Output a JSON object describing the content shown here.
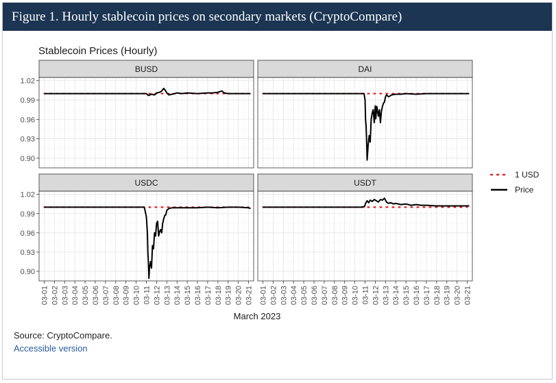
{
  "header": {
    "title": "Figure 1. Hourly stablecoin prices on secondary markets (CryptoCompare)"
  },
  "chart_data": {
    "type": "line",
    "title": "Stablecoin Prices (Hourly)",
    "xlabel": "March 2023",
    "ylabel": "",
    "ylim": [
      0.885,
      1.025
    ],
    "yticks": [
      0.9,
      0.93,
      0.96,
      0.99,
      1.02
    ],
    "ytick_labels": [
      "0.90",
      "0.93",
      "0.96",
      "0.99",
      "1.02"
    ],
    "xlim": [
      0.5,
      21.5
    ],
    "x_tick_labels": [
      "03-01",
      "03-02",
      "03-03",
      "03-04",
      "03-05",
      "03-06",
      "03-07",
      "03-08",
      "03-09",
      "03-10",
      "03-11",
      "03-12",
      "03-13",
      "03-14",
      "03-15",
      "03-16",
      "03-17",
      "03-18",
      "03-19",
      "03-20",
      "03-21"
    ],
    "legend": {
      "position": "right",
      "entries": [
        {
          "label": "1 USD",
          "style": "dotted",
          "color": "#e41a1c"
        },
        {
          "label": "Price",
          "style": "solid",
          "color": "#000000"
        }
      ]
    },
    "panels": [
      {
        "name": "BUSD",
        "reference": 1.0,
        "series": [
          {
            "name": "Price",
            "x": [
              1,
              10.5,
              11.0,
              11.2,
              11.5,
              11.8,
              12.0,
              12.3,
              12.5,
              12.7,
              12.9,
              13.0,
              13.2,
              13.5,
              13.8,
              14.0,
              14.5,
              15.0,
              16.0,
              17.0,
              17.5,
              18.0,
              18.2,
              18.4,
              18.6,
              19.0,
              20.0,
              21.2
            ],
            "y": [
              1.0,
              1.0,
              1.0,
              0.997,
              0.999,
              0.998,
              1.001,
              1.002,
              1.004,
              1.008,
              1.004,
              1.001,
              0.998,
              0.999,
              1.0,
              1.001,
              1.0,
              1.001,
              1.0,
              1.001,
              1.001,
              1.002,
              1.003,
              1.004,
              1.001,
              1.0,
              1.0,
              1.0
            ]
          }
        ]
      },
      {
        "name": "DAI",
        "reference": 1.0,
        "series": [
          {
            "name": "Price",
            "x": [
              1,
              10.4,
              10.9,
              11.0,
              11.05,
              11.1,
              11.15,
              11.2,
              11.3,
              11.4,
              11.5,
              11.6,
              11.7,
              11.8,
              11.9,
              12.0,
              12.05,
              12.15,
              12.3,
              12.4,
              12.5,
              12.6,
              12.7,
              12.8,
              12.9,
              13.0,
              13.1,
              13.3,
              13.6,
              14.0,
              14.5,
              15.0,
              16.0,
              17.0,
              18.0,
              19.0,
              20.0,
              21.2
            ],
            "y": [
              1.0,
              1.0,
              1.0,
              0.99,
              0.96,
              0.95,
              0.93,
              0.897,
              0.92,
              0.935,
              0.925,
              0.96,
              0.97,
              0.975,
              0.955,
              0.981,
              0.961,
              0.98,
              0.965,
              0.975,
              0.955,
              0.972,
              0.98,
              0.985,
              0.987,
              0.995,
              0.998,
              0.995,
              0.998,
              0.999,
              0.999,
              1.0,
              0.999,
              1.0,
              1.0,
              1.0,
              1.0,
              1.0
            ]
          }
        ]
      },
      {
        "name": "USDC",
        "reference": 1.0,
        "series": [
          {
            "name": "Price",
            "x": [
              1,
              10.3,
              10.8,
              11.0,
              11.1,
              11.15,
              11.2,
              11.25,
              11.3,
              11.4,
              11.5,
              11.6,
              11.7,
              11.8,
              11.9,
              12.0,
              12.1,
              12.2,
              12.3,
              12.4,
              12.5,
              12.6,
              12.7,
              12.8,
              12.9,
              13.0,
              13.2,
              13.5,
              14.0,
              15.0,
              16.0,
              17.0,
              18.0,
              19.0,
              20.0,
              21.0,
              21.2
            ],
            "y": [
              1.0,
              1.0,
              1.0,
              0.985,
              0.96,
              0.93,
              0.912,
              0.889,
              0.905,
              0.915,
              0.905,
              0.94,
              0.935,
              0.96,
              0.955,
              0.975,
              0.978,
              0.955,
              0.962,
              0.965,
              0.96,
              0.975,
              0.982,
              0.987,
              0.988,
              0.995,
              0.998,
              0.999,
              0.999,
              0.999,
              0.999,
              1.0,
              0.999,
              1.0,
              1.0,
              0.999,
              0.998
            ]
          }
        ]
      },
      {
        "name": "USDT",
        "reference": 1.0,
        "series": [
          {
            "name": "Price",
            "x": [
              1,
              10.6,
              10.95,
              11.05,
              11.2,
              11.35,
              11.5,
              11.7,
              11.9,
              12.1,
              12.3,
              12.5,
              12.7,
              12.9,
              13.1,
              13.3,
              13.5,
              13.8,
              14.0,
              14.5,
              15.0,
              15.5,
              16.0,
              16.5,
              17.0,
              18.0,
              19.0,
              20.0,
              21.2
            ],
            "y": [
              1.0,
              1.0,
              1.001,
              1.006,
              1.01,
              1.007,
              1.011,
              1.009,
              1.012,
              1.01,
              1.008,
              1.012,
              1.011,
              1.014,
              1.008,
              1.006,
              1.007,
              1.005,
              1.006,
              1.004,
              1.005,
              1.003,
              1.004,
              1.003,
              1.003,
              1.002,
              1.002,
              1.002,
              1.002
            ]
          }
        ]
      }
    ]
  },
  "footer": {
    "source": "Source: CryptoCompare.",
    "accessible_link": "Accessible version"
  },
  "colors": {
    "header_bg": "#1b3552",
    "strip_bg": "#d9d9d9",
    "reference": "#e41a1c",
    "price": "#000000",
    "link": "#2a5c9a"
  }
}
